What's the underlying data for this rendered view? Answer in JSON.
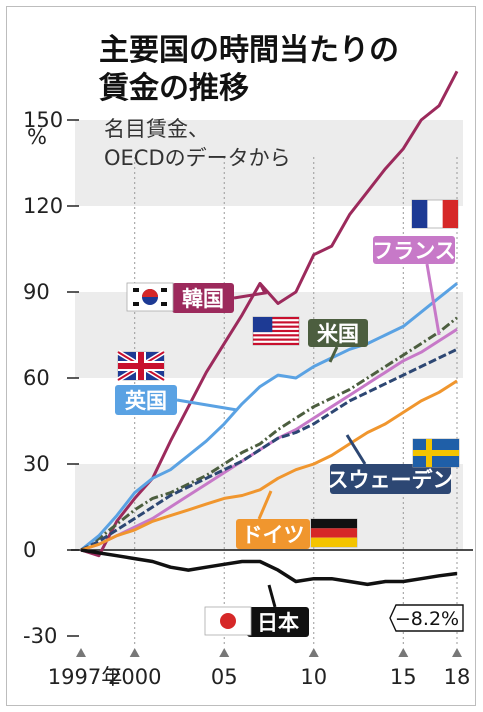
{
  "chart_data": {
    "type": "line",
    "title": [
      "主要国の時間当たりの",
      "賃金の推移"
    ],
    "subtitle": [
      "名目賃金、",
      "OECDのデータから"
    ],
    "ylabel": "%",
    "ylim": [
      -30,
      170
    ],
    "yticks": [
      150,
      120,
      90,
      60,
      30,
      0,
      -30
    ],
    "xlim": [
      1997,
      2018
    ],
    "xticks": [
      {
        "value": 1997,
        "label": "1997年"
      },
      {
        "value": 2000,
        "label": "2000"
      },
      {
        "value": 2005,
        "label": "05"
      },
      {
        "value": 2010,
        "label": "10"
      },
      {
        "value": 2015,
        "label": "15"
      },
      {
        "value": 2018,
        "label": "18"
      }
    ],
    "annotation": "−8.2%",
    "series": [
      {
        "name": "韓国",
        "color": "#9c2a5c",
        "flag": "kr",
        "x": [
          1997,
          1998,
          1999,
          2000,
          2001,
          2002,
          2003,
          2004,
          2005,
          2006,
          2007,
          2008,
          2009,
          2010,
          2011,
          2012,
          2013,
          2014,
          2015,
          2016,
          2017,
          2018
        ],
        "values": [
          0,
          -2,
          10,
          18,
          25,
          38,
          50,
          62,
          72,
          82,
          93,
          86,
          90,
          103,
          106,
          117,
          125,
          133,
          140,
          150,
          155,
          167
        ]
      },
      {
        "name": "フランス",
        "color": "#c779c8",
        "flag": "fr",
        "x": [
          1997,
          1998,
          1999,
          2000,
          2001,
          2002,
          2003,
          2004,
          2005,
          2006,
          2007,
          2008,
          2009,
          2010,
          2011,
          2012,
          2013,
          2014,
          2015,
          2016,
          2017,
          2018
        ],
        "values": [
          0,
          2,
          5,
          8,
          11,
          15,
          19,
          23,
          27,
          31,
          35,
          39,
          42,
          46,
          50,
          54,
          58,
          62,
          66,
          69,
          73,
          77
        ]
      },
      {
        "name": "米国",
        "color": "#4c5e3f",
        "flag": "us",
        "x": [
          1997,
          1998,
          1999,
          2000,
          2001,
          2002,
          2003,
          2004,
          2005,
          2006,
          2007,
          2008,
          2009,
          2010,
          2011,
          2012,
          2013,
          2014,
          2015,
          2016,
          2017,
          2018
        ],
        "values": [
          0,
          4,
          9,
          14,
          18,
          20,
          23,
          26,
          30,
          34,
          37,
          42,
          46,
          50,
          53,
          56,
          60,
          64,
          68,
          72,
          76,
          81
        ]
      },
      {
        "name": "英国",
        "color": "#5aa2e3",
        "flag": "uk",
        "x": [
          1997,
          1998,
          1999,
          2000,
          2001,
          2002,
          2003,
          2004,
          2005,
          2006,
          2007,
          2008,
          2009,
          2010,
          2011,
          2012,
          2013,
          2014,
          2015,
          2016,
          2017,
          2018
        ],
        "values": [
          0,
          5,
          12,
          20,
          25,
          28,
          33,
          38,
          44,
          51,
          57,
          61,
          60,
          64,
          67,
          70,
          72,
          75,
          78,
          83,
          88,
          93
        ]
      },
      {
        "name": "スウェーデン",
        "color": "#2d4773",
        "flag": "se",
        "x": [
          1997,
          1998,
          1999,
          2000,
          2001,
          2002,
          2003,
          2004,
          2005,
          2006,
          2007,
          2008,
          2009,
          2010,
          2011,
          2012,
          2013,
          2014,
          2015,
          2016,
          2017,
          2018
        ],
        "values": [
          0,
          3,
          7,
          11,
          15,
          19,
          22,
          25,
          28,
          31,
          35,
          39,
          41,
          44,
          48,
          52,
          55,
          58,
          61,
          64,
          67,
          70
        ]
      },
      {
        "name": "ドイツ",
        "color": "#f0962e",
        "flag": "de",
        "x": [
          1997,
          1998,
          1999,
          2000,
          2001,
          2002,
          2003,
          2004,
          2005,
          2006,
          2007,
          2008,
          2009,
          2010,
          2011,
          2012,
          2013,
          2014,
          2015,
          2016,
          2017,
          2018
        ],
        "values": [
          0,
          2,
          5,
          7,
          10,
          12,
          14,
          16,
          18,
          19,
          21,
          25,
          28,
          30,
          33,
          37,
          41,
          44,
          48,
          52,
          55,
          59
        ]
      },
      {
        "name": "日本",
        "color": "#111111",
        "flag": "jp",
        "x": [
          1997,
          1998,
          1999,
          2000,
          2001,
          2002,
          2003,
          2004,
          2005,
          2006,
          2007,
          2008,
          2009,
          2010,
          2011,
          2012,
          2013,
          2014,
          2015,
          2016,
          2017,
          2018
        ],
        "values": [
          0,
          -1,
          -2,
          -3,
          -4,
          -6,
          -7,
          -6,
          -5,
          -4,
          -4,
          -7,
          -11,
          -10,
          -10,
          -11,
          -12,
          -11,
          -11,
          -10,
          -9,
          -8.2
        ]
      }
    ]
  }
}
